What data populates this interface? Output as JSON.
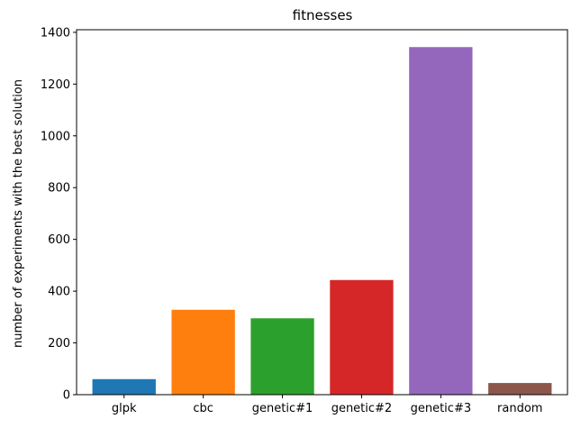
{
  "chart_data": {
    "type": "bar",
    "title": "fitnesses",
    "xlabel": "",
    "ylabel": "number of experiments with the best solution",
    "categories": [
      "glpk",
      "cbc",
      "genetic#1",
      "genetic#2",
      "genetic#3",
      "random"
    ],
    "values": [
      60,
      328,
      295,
      443,
      1343,
      45
    ],
    "colors": [
      "#1f77b4",
      "#ff7f0e",
      "#2ca02c",
      "#d62728",
      "#9467bd",
      "#8c564b"
    ],
    "ylim": [
      0,
      1410
    ],
    "yticks": [
      0,
      200,
      400,
      600,
      800,
      1000,
      1200,
      1400
    ],
    "ytick_labels": [
      "0",
      "200",
      "400",
      "600",
      "800",
      "1000",
      "1200",
      "1400"
    ],
    "grid": false,
    "legend": "none"
  }
}
